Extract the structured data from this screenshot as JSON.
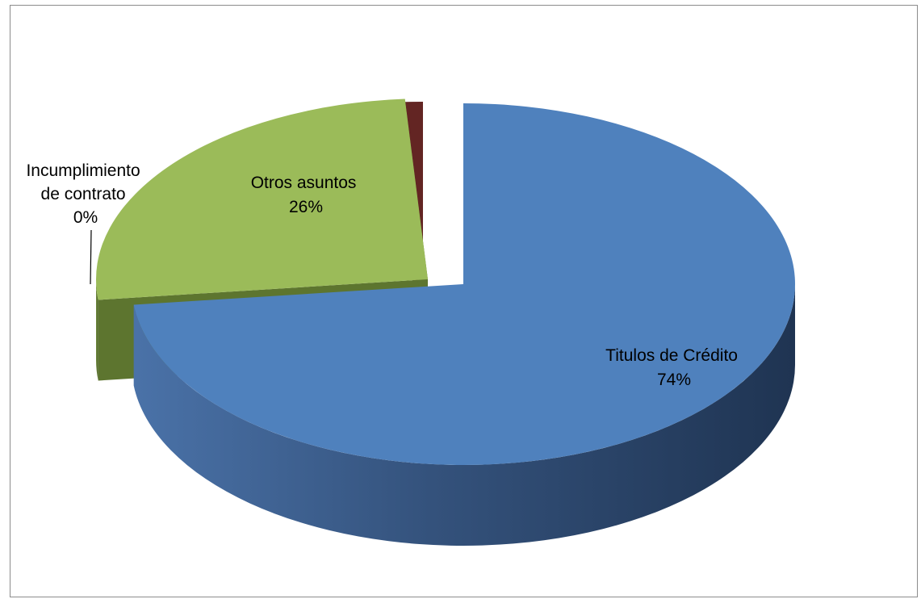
{
  "chart_data": {
    "type": "pie",
    "style": "3d-exploded",
    "title": "",
    "categories": [
      "Titulos de Crédito",
      "Otros asuntos",
      "Incumplimiento de contrato"
    ],
    "values": [
      74,
      26,
      0
    ],
    "percent_labels": [
      "74%",
      "26%",
      "0%"
    ],
    "label_lines": [
      [
        "Titulos de Crédito"
      ],
      [
        "Otros asuntos"
      ],
      [
        "Incumplimiento",
        "de contrato"
      ]
    ],
    "colors": [
      "#4f81bd",
      "#9bbb59",
      "#632523"
    ],
    "legend": "none"
  }
}
